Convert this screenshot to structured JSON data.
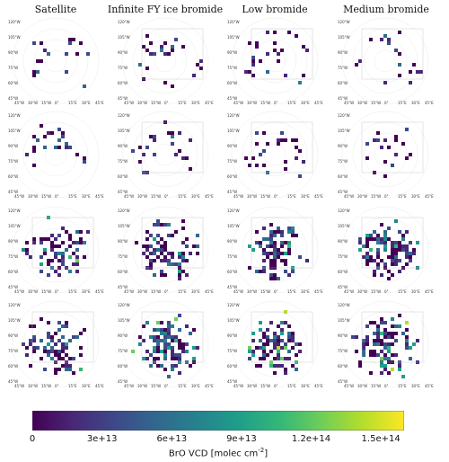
{
  "chart_data": {
    "type": "heatmap",
    "description_columns": [
      "Satellite",
      "Infinite FY ice bromide",
      "Low bromide",
      "Medium bromide"
    ],
    "rows": 4,
    "map_labels": {
      "lat_labels": [
        "120°W",
        "105°W",
        "90°W",
        "75°W",
        "60°W",
        "45°W"
      ],
      "lon_labels": [
        "45°W",
        "30°W",
        "15°W",
        "0°",
        "15°E",
        "30°E",
        "45°E"
      ]
    },
    "colorbar": {
      "label": "BrO VCD [molec cm",
      "label_exponent": "-2",
      "label_suffix": "]",
      "min": 0,
      "max": 160000000000000,
      "ticks": [
        {
          "value": 0,
          "label": "0"
        },
        {
          "value": 30000000000000,
          "label": "3e+13"
        },
        {
          "value": 60000000000000,
          "label": "6e+13"
        },
        {
          "value": 90000000000000,
          "label": "9e+13"
        },
        {
          "value": 120000000000000,
          "label": "1.2e+14"
        },
        {
          "value": 150000000000000,
          "label": "1.5e+14"
        }
      ],
      "colors": [
        "#440154",
        "#482878",
        "#3e4989",
        "#31688e",
        "#26828e",
        "#1f9e89",
        "#35b779",
        "#6ece58",
        "#b5de2b",
        "#fde725"
      ]
    }
  }
}
